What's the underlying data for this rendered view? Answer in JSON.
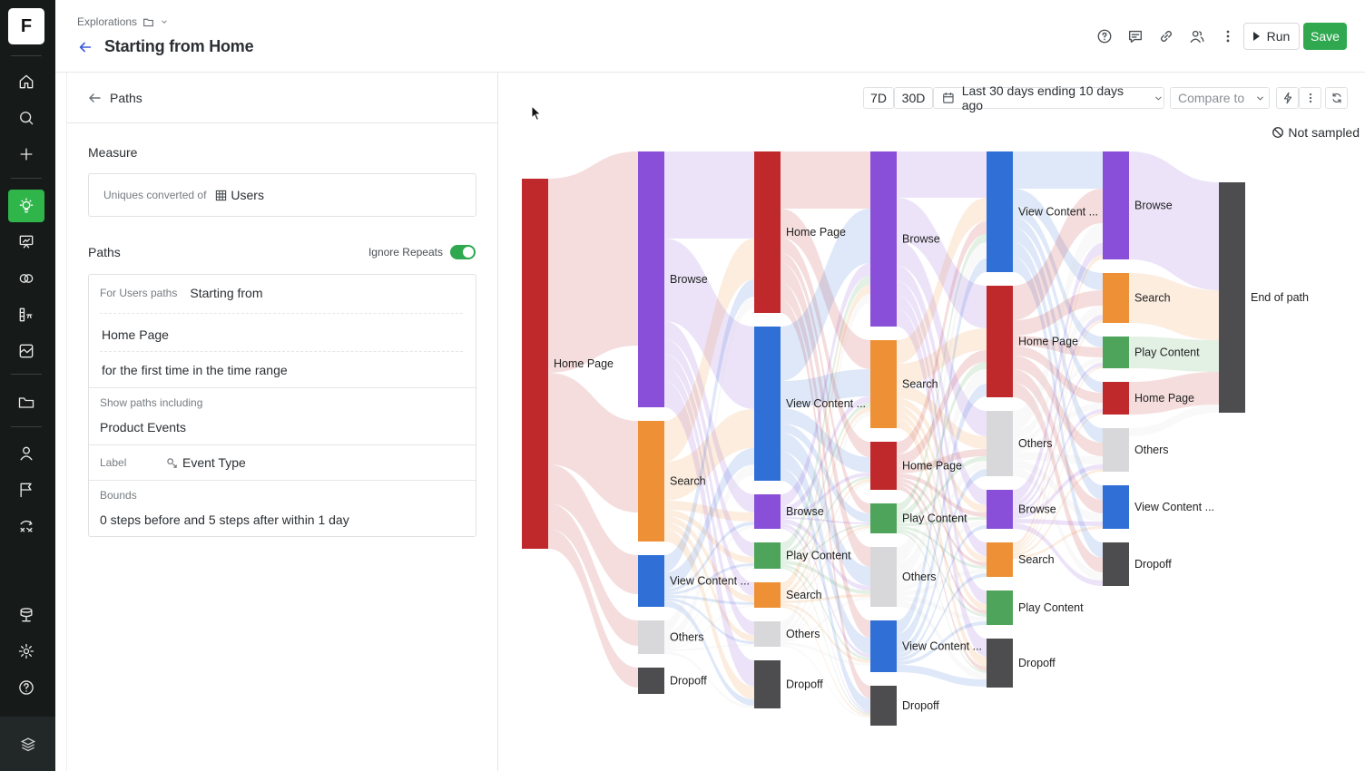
{
  "header": {
    "breadcrumb": "Explorations",
    "title": "Starting from Home",
    "run_label": "Run",
    "save_label": "Save"
  },
  "rail": {
    "logo_letter": "F"
  },
  "panel": {
    "back_label": "Paths",
    "measure_title": "Measure",
    "measure_prefix": "Uniques converted of",
    "measure_value": "Users",
    "paths_title": "Paths",
    "ignore_repeats_label": "Ignore Repeats",
    "ignore_repeats_on": true,
    "for_users_label": "For Users paths",
    "starting_from": "Starting from",
    "start_event": "Home Page",
    "first_time": "for the first time in the time range",
    "show_paths_label": "Show paths including",
    "show_paths_value": "Product Events",
    "label_label": "Label",
    "label_value": "Event Type",
    "bounds_label": "Bounds",
    "bounds_value": "0 steps before and 5 steps after within 1 day"
  },
  "toolbar": {
    "range_7d": "7D",
    "range_30d": "30D",
    "date_range": "Last 30 days ending 10 days ago",
    "compare_to": "Compare to",
    "not_sampled": "Not sampled"
  },
  "colors": {
    "home": "#c0292b",
    "browse": "#8a4fd8",
    "search": "#ee9035",
    "view": "#2f6fd6",
    "play": "#4ea45a",
    "others": "#d8d8da",
    "dropoff": "#4d4d4f",
    "end": "#4d4d4f",
    "accent_green": "#2fa84f"
  },
  "chart_data": {
    "type": "sankey",
    "title": "Starting from Home",
    "columns": [
      {
        "step": 0,
        "nodes": [
          {
            "id": "s0-home",
            "label": "Home Page",
            "kind": "home",
            "value": 408
          }
        ]
      },
      {
        "step": 1,
        "nodes": [
          {
            "id": "s1-browse",
            "label": "Browse",
            "kind": "browse",
            "value": 282
          },
          {
            "id": "s1-search",
            "label": "Search",
            "kind": "search",
            "value": 133
          },
          {
            "id": "s1-view",
            "label": "View Content ...",
            "kind": "view",
            "value": 57
          },
          {
            "id": "s1-others",
            "label": "Others",
            "kind": "others",
            "value": 37
          },
          {
            "id": "s1-dropoff",
            "label": "Dropoff",
            "kind": "dropoff",
            "value": 29
          }
        ]
      },
      {
        "step": 2,
        "nodes": [
          {
            "id": "s2-home",
            "label": "Home Page",
            "kind": "home",
            "value": 178
          },
          {
            "id": "s2-view",
            "label": "View Content ...",
            "kind": "view",
            "value": 170
          },
          {
            "id": "s2-browse",
            "label": "Browse",
            "kind": "browse",
            "value": 38
          },
          {
            "id": "s2-play",
            "label": "Play Content",
            "kind": "play",
            "value": 29
          },
          {
            "id": "s2-search",
            "label": "Search",
            "kind": "search",
            "value": 28
          },
          {
            "id": "s2-others",
            "label": "Others",
            "kind": "others",
            "value": 28
          },
          {
            "id": "s2-dropoff",
            "label": "Dropoff",
            "kind": "dropoff",
            "value": 53
          }
        ]
      },
      {
        "step": 3,
        "nodes": [
          {
            "id": "s3-browse",
            "label": "Browse",
            "kind": "browse",
            "value": 193
          },
          {
            "id": "s3-search",
            "label": "Search",
            "kind": "search",
            "value": 97
          },
          {
            "id": "s3-home",
            "label": "Home Page",
            "kind": "home",
            "value": 53
          },
          {
            "id": "s3-play",
            "label": "Play Content",
            "kind": "play",
            "value": 33
          },
          {
            "id": "s3-others",
            "label": "Others",
            "kind": "others",
            "value": 66
          },
          {
            "id": "s3-view",
            "label": "View Content ...",
            "kind": "view",
            "value": 57
          },
          {
            "id": "s3-dropoff",
            "label": "Dropoff",
            "kind": "dropoff",
            "value": 44
          }
        ]
      },
      {
        "step": 4,
        "nodes": [
          {
            "id": "s4-view",
            "label": "View Content ...",
            "kind": "view",
            "value": 133
          },
          {
            "id": "s4-home",
            "label": "Home Page",
            "kind": "home",
            "value": 123
          },
          {
            "id": "s4-others",
            "label": "Others",
            "kind": "others",
            "value": 72
          },
          {
            "id": "s4-browse",
            "label": "Browse",
            "kind": "browse",
            "value": 43
          },
          {
            "id": "s4-search",
            "label": "Search",
            "kind": "search",
            "value": 38
          },
          {
            "id": "s4-play",
            "label": "Play Content",
            "kind": "play",
            "value": 38
          },
          {
            "id": "s4-dropoff",
            "label": "Dropoff",
            "kind": "dropoff",
            "value": 54
          }
        ]
      },
      {
        "step": 5,
        "nodes": [
          {
            "id": "s5-browse",
            "label": "Browse",
            "kind": "browse",
            "value": 119
          },
          {
            "id": "s5-search",
            "label": "Search",
            "kind": "search",
            "value": 55
          },
          {
            "id": "s5-play",
            "label": "Play Content",
            "kind": "play",
            "value": 35
          },
          {
            "id": "s5-home",
            "label": "Home Page",
            "kind": "home",
            "value": 36
          },
          {
            "id": "s5-others",
            "label": "Others",
            "kind": "others",
            "value": 48
          },
          {
            "id": "s5-view",
            "label": "View Content ...",
            "kind": "view",
            "value": 48
          },
          {
            "id": "s5-dropoff",
            "label": "Dropoff",
            "kind": "dropoff",
            "value": 48
          }
        ]
      },
      {
        "step": 6,
        "nodes": [
          {
            "id": "s6-end",
            "label": "End of path",
            "kind": "end",
            "value": 254
          }
        ]
      }
    ]
  }
}
